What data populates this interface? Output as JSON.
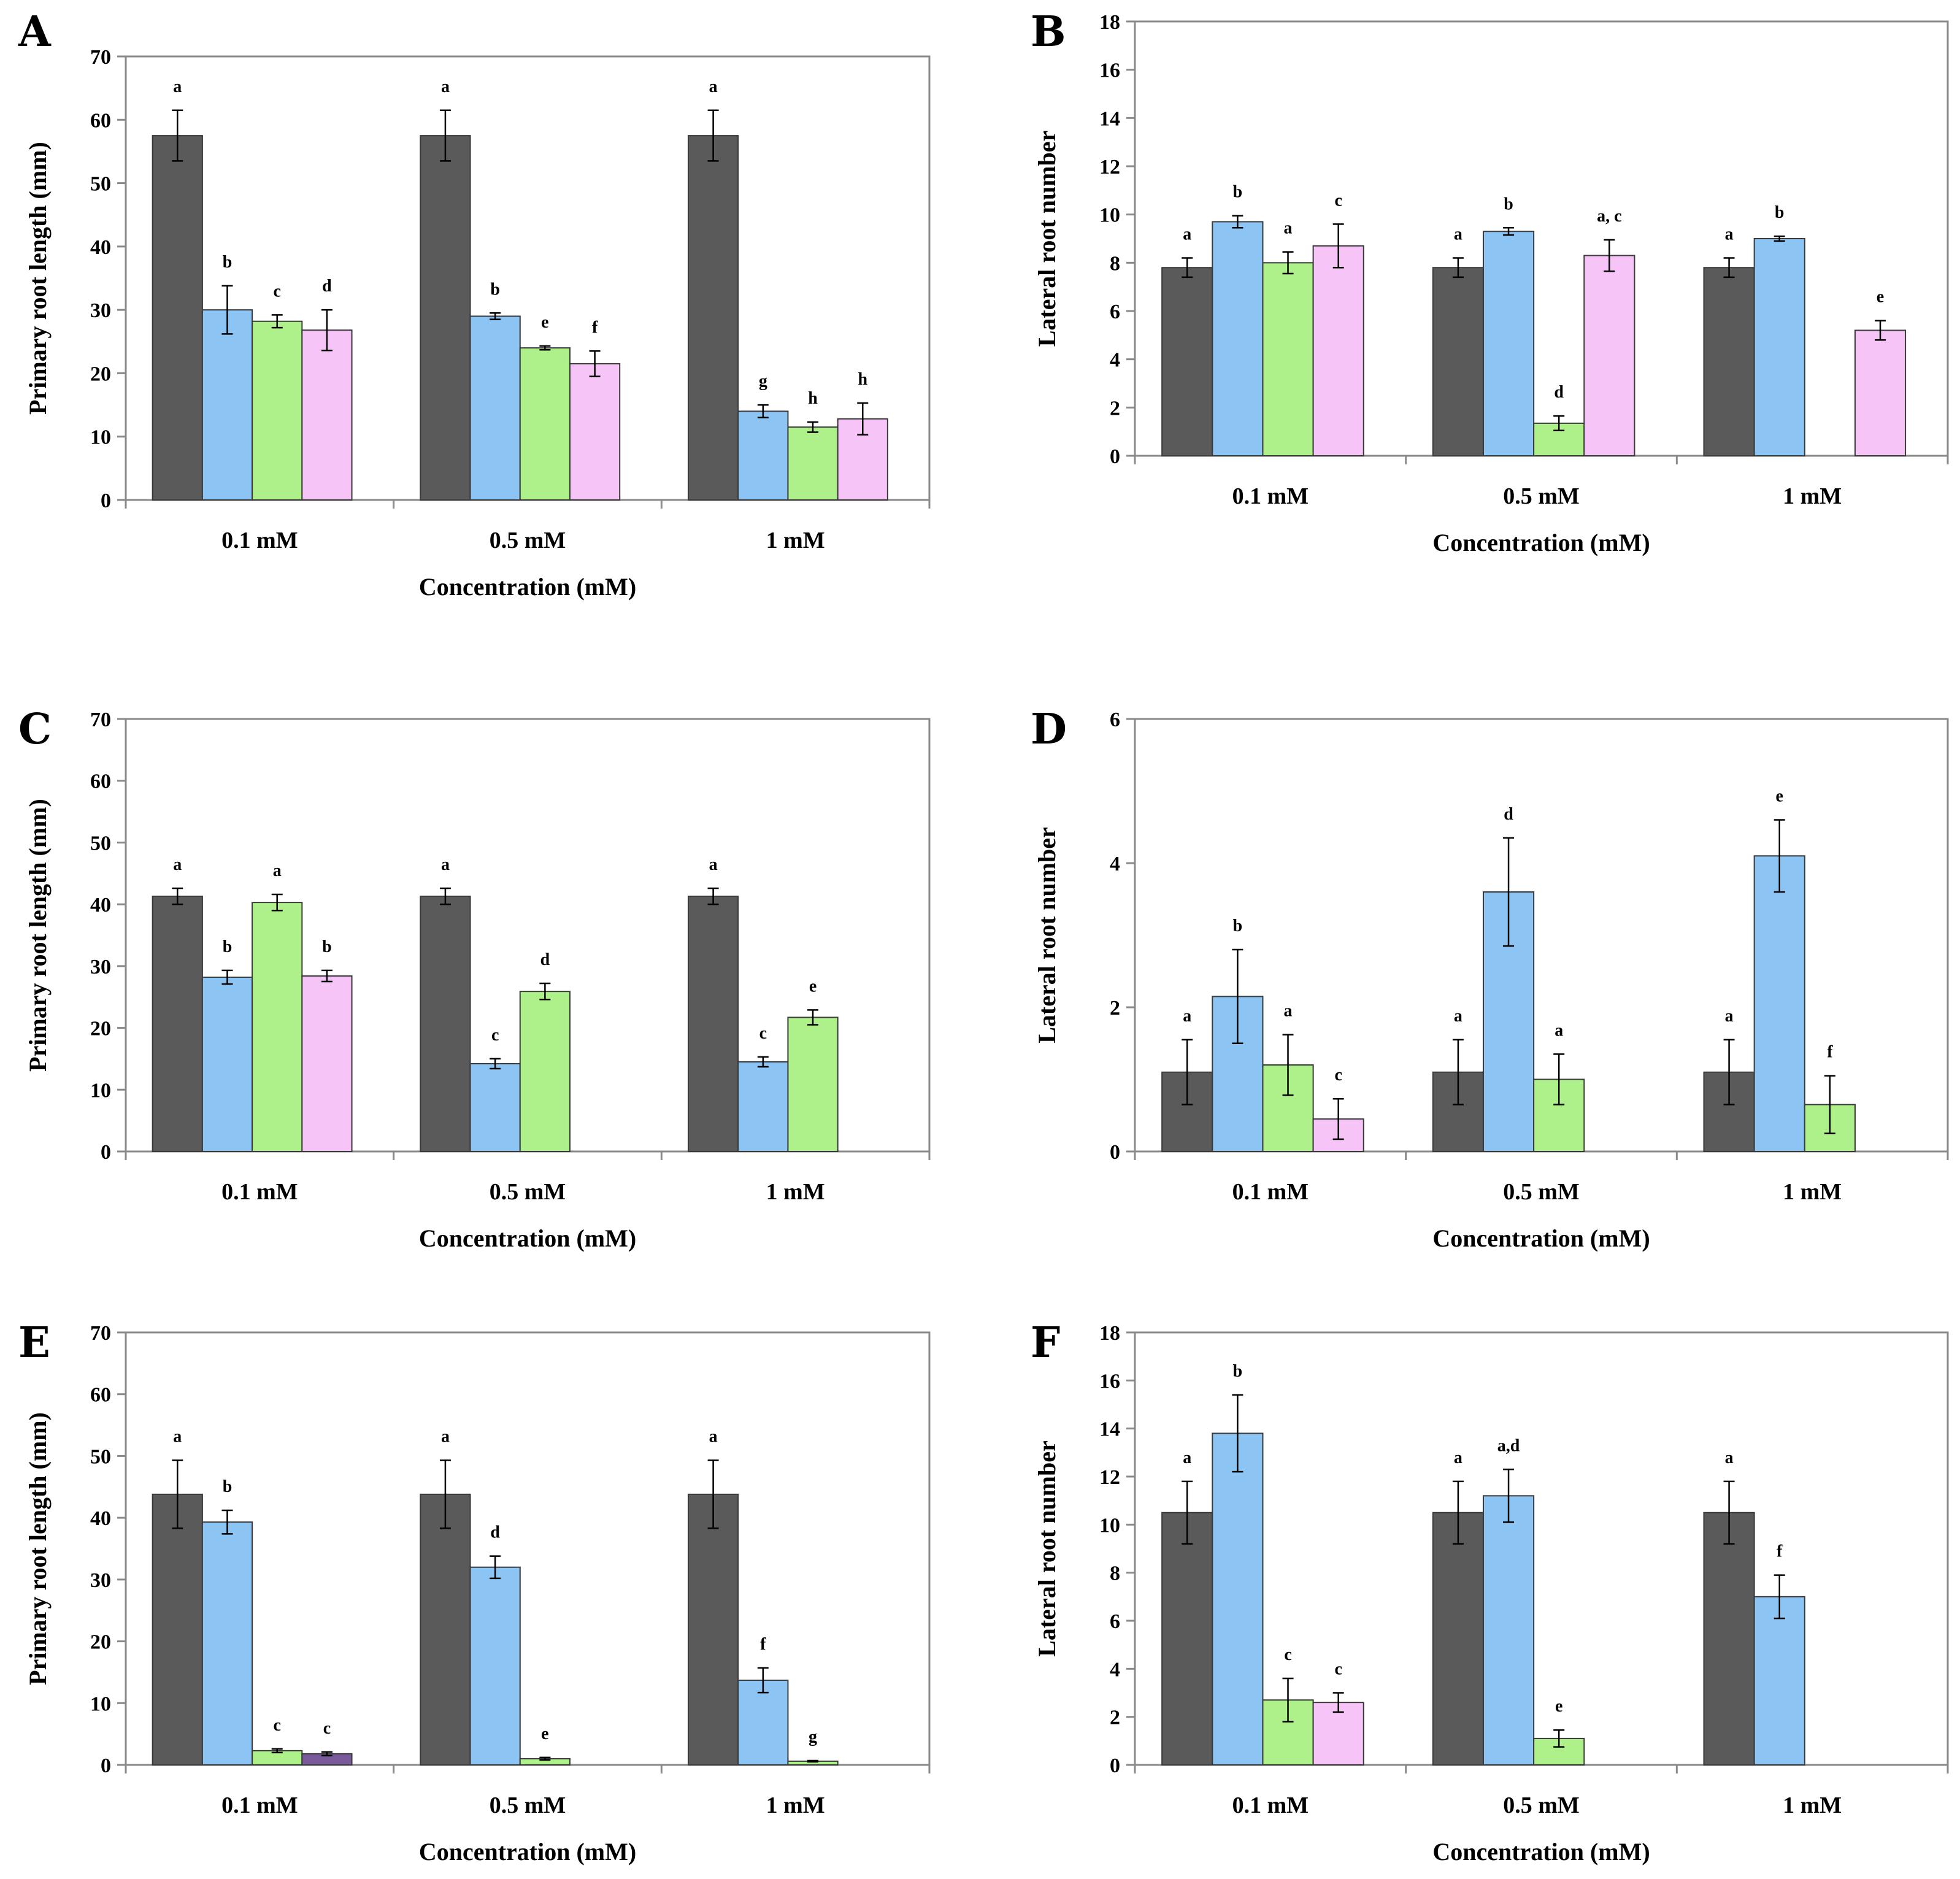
{
  "colors": {
    "control": "#5a5a5a",
    "blue": "#8cc4f4",
    "green": "#aef08a",
    "pink": "#f6c4f6",
    "purple": "#7a5a9a",
    "axis": "#8a8a8a",
    "errorbar": "#000000"
  },
  "chart_data": [
    {
      "type": "bar",
      "panel": "A",
      "categories": [
        "0.1 mM",
        "0.5 mM",
        "1 mM"
      ],
      "xlabel": "Concentration (mM)",
      "ylabel": "Primary root length (mm)",
      "ylim": [
        0,
        70
      ],
      "yticks": [
        0,
        10,
        20,
        30,
        40,
        50,
        60,
        70
      ],
      "grid": false,
      "groups": [
        {
          "bars": [
            {
              "value": 57.5,
              "err": 4.0,
              "label": "a",
              "color": "control"
            },
            {
              "value": 30.0,
              "err": 3.8,
              "label": "b",
              "color": "blue"
            },
            {
              "value": 28.2,
              "err": 1.0,
              "label": "c",
              "color": "green"
            },
            {
              "value": 26.8,
              "err": 3.2,
              "label": "d",
              "color": "pink"
            }
          ]
        },
        {
          "bars": [
            {
              "value": 57.5,
              "err": 4.0,
              "label": "a",
              "color": "control"
            },
            {
              "value": 29.0,
              "err": 0.5,
              "label": "b",
              "color": "blue"
            },
            {
              "value": 24.0,
              "err": 0.3,
              "label": "e",
              "color": "green"
            },
            {
              "value": 21.5,
              "err": 2.0,
              "label": "f",
              "color": "pink"
            }
          ]
        },
        {
          "bars": [
            {
              "value": 57.5,
              "err": 4.0,
              "label": "a",
              "color": "control"
            },
            {
              "value": 14.0,
              "err": 1.0,
              "label": "g",
              "color": "blue"
            },
            {
              "value": 11.5,
              "err": 0.8,
              "label": "h",
              "color": "green"
            },
            {
              "value": 12.8,
              "err": 2.5,
              "label": "h",
              "color": "pink"
            }
          ]
        }
      ]
    },
    {
      "type": "bar",
      "panel": "B",
      "categories": [
        "0.1 mM",
        "0.5 mM",
        "1 mM"
      ],
      "xlabel": "Concentration (mM)",
      "ylabel": "Lateral  root number",
      "ylim": [
        0,
        18
      ],
      "yticks": [
        0,
        2,
        4,
        6,
        8,
        10,
        12,
        14,
        16,
        18
      ],
      "grid": false,
      "groups": [
        {
          "bars": [
            {
              "value": 7.8,
              "err": 0.4,
              "label": "a",
              "color": "control"
            },
            {
              "value": 9.7,
              "err": 0.25,
              "label": "b",
              "color": "blue"
            },
            {
              "value": 8.0,
              "err": 0.45,
              "label": "a",
              "color": "green"
            },
            {
              "value": 8.7,
              "err": 0.9,
              "label": "c",
              "color": "pink"
            }
          ]
        },
        {
          "bars": [
            {
              "value": 7.8,
              "err": 0.4,
              "label": "a",
              "color": "control"
            },
            {
              "value": 9.3,
              "err": 0.15,
              "label": "b",
              "color": "blue"
            },
            {
              "value": 1.35,
              "err": 0.3,
              "label": "d",
              "color": "green"
            },
            {
              "value": 8.3,
              "err": 0.65,
              "label": "a, c",
              "color": "pink"
            }
          ]
        },
        {
          "bars": [
            {
              "value": 7.8,
              "err": 0.4,
              "label": "a",
              "color": "control"
            },
            {
              "value": 9.0,
              "err": 0.1,
              "label": "b",
              "color": "blue"
            },
            null,
            {
              "value": 5.2,
              "err": 0.4,
              "label": "e",
              "color": "pink"
            }
          ]
        }
      ]
    },
    {
      "type": "bar",
      "panel": "C",
      "categories": [
        "0.1 mM",
        "0.5 mM",
        "1 mM"
      ],
      "xlabel": "Concentration (mM)",
      "ylabel": "Primary root length (mm)",
      "ylim": [
        0,
        70
      ],
      "yticks": [
        0,
        10,
        20,
        30,
        40,
        50,
        60,
        70
      ],
      "grid": false,
      "groups": [
        {
          "bars": [
            {
              "value": 41.3,
              "err": 1.3,
              "label": "a",
              "color": "control"
            },
            {
              "value": 28.2,
              "err": 1.1,
              "label": "b",
              "color": "blue"
            },
            {
              "value": 40.3,
              "err": 1.3,
              "label": "a",
              "color": "green"
            },
            {
              "value": 28.4,
              "err": 0.9,
              "label": "b",
              "color": "pink"
            }
          ]
        },
        {
          "bars": [
            {
              "value": 41.3,
              "err": 1.3,
              "label": "a",
              "color": "control"
            },
            {
              "value": 14.2,
              "err": 0.8,
              "label": "c",
              "color": "blue"
            },
            {
              "value": 25.9,
              "err": 1.3,
              "label": "d",
              "color": "green"
            },
            null
          ]
        },
        {
          "bars": [
            {
              "value": 41.3,
              "err": 1.3,
              "label": "a",
              "color": "control"
            },
            {
              "value": 14.5,
              "err": 0.8,
              "label": "c",
              "color": "blue"
            },
            {
              "value": 21.7,
              "err": 1.2,
              "label": "e",
              "color": "green"
            },
            null
          ]
        }
      ]
    },
    {
      "type": "bar",
      "panel": "D",
      "categories": [
        "0.1 mM",
        "0.5 mM",
        "1 mM"
      ],
      "xlabel": "Concentration (mM)",
      "ylabel": "Lateral  root number",
      "ylim": [
        0,
        6
      ],
      "yticks": [
        0,
        2,
        4,
        6
      ],
      "grid": false,
      "groups": [
        {
          "bars": [
            {
              "value": 1.1,
              "err": 0.45,
              "label": "a",
              "color": "control"
            },
            {
              "value": 2.15,
              "err": 0.65,
              "label": "b",
              "color": "blue"
            },
            {
              "value": 1.2,
              "err": 0.42,
              "label": "a",
              "color": "green"
            },
            {
              "value": 0.45,
              "err": 0.28,
              "label": "c",
              "color": "pink"
            }
          ]
        },
        {
          "bars": [
            {
              "value": 1.1,
              "err": 0.45,
              "label": "a",
              "color": "control"
            },
            {
              "value": 3.6,
              "err": 0.75,
              "label": "d",
              "color": "blue"
            },
            {
              "value": 1.0,
              "err": 0.35,
              "label": "a",
              "color": "green"
            },
            null
          ]
        },
        {
          "bars": [
            {
              "value": 1.1,
              "err": 0.45,
              "label": "a",
              "color": "control"
            },
            {
              "value": 4.1,
              "err": 0.5,
              "label": "e",
              "color": "blue"
            },
            {
              "value": 0.65,
              "err": 0.4,
              "label": "f",
              "color": "green"
            },
            null
          ]
        }
      ]
    },
    {
      "type": "bar",
      "panel": "E",
      "categories": [
        "0.1 mM",
        "0.5 mM",
        "1 mM"
      ],
      "xlabel": "Concentration (mM)",
      "ylabel": "Primary root length (mm)",
      "ylim": [
        0,
        70
      ],
      "yticks": [
        0,
        10,
        20,
        30,
        40,
        50,
        60,
        70
      ],
      "grid": false,
      "groups": [
        {
          "bars": [
            {
              "value": 43.8,
              "err": 5.5,
              "label": "a",
              "color": "control"
            },
            {
              "value": 39.3,
              "err": 1.9,
              "label": "b",
              "color": "blue"
            },
            {
              "value": 2.3,
              "err": 0.3,
              "label": "c",
              "color": "green"
            },
            {
              "value": 1.8,
              "err": 0.3,
              "label": "c",
              "color": "purple"
            }
          ]
        },
        {
          "bars": [
            {
              "value": 43.8,
              "err": 5.5,
              "label": "a",
              "color": "control"
            },
            {
              "value": 32.0,
              "err": 1.8,
              "label": "d",
              "color": "blue"
            },
            {
              "value": 1.0,
              "err": 0.2,
              "label": "e",
              "color": "green"
            },
            null
          ]
        },
        {
          "bars": [
            {
              "value": 43.8,
              "err": 5.5,
              "label": "a",
              "color": "control"
            },
            {
              "value": 13.7,
              "err": 2.0,
              "label": "f",
              "color": "blue"
            },
            {
              "value": 0.6,
              "err": 0.1,
              "label": "g",
              "color": "green"
            },
            null
          ]
        }
      ]
    },
    {
      "type": "bar",
      "panel": "F",
      "categories": [
        "0.1 mM",
        "0.5 mM",
        "1 mM"
      ],
      "xlabel": "Concentration (mM)",
      "ylabel": "Lateral  root number",
      "ylim": [
        0,
        18
      ],
      "yticks": [
        0,
        2,
        4,
        6,
        8,
        10,
        12,
        14,
        16,
        18
      ],
      "grid": false,
      "groups": [
        {
          "bars": [
            {
              "value": 10.5,
              "err": 1.3,
              "label": "a",
              "color": "control"
            },
            {
              "value": 13.8,
              "err": 1.6,
              "label": "b",
              "color": "blue"
            },
            {
              "value": 2.7,
              "err": 0.9,
              "label": "c",
              "color": "green"
            },
            {
              "value": 2.6,
              "err": 0.4,
              "label": "c",
              "color": "pink"
            }
          ]
        },
        {
          "bars": [
            {
              "value": 10.5,
              "err": 1.3,
              "label": "a",
              "color": "control"
            },
            {
              "value": 11.2,
              "err": 1.1,
              "label": "a,d",
              "color": "blue"
            },
            {
              "value": 1.1,
              "err": 0.35,
              "label": "e",
              "color": "green"
            },
            null
          ]
        },
        {
          "bars": [
            {
              "value": 10.5,
              "err": 1.3,
              "label": "a",
              "color": "control"
            },
            {
              "value": 7.0,
              "err": 0.9,
              "label": "f",
              "color": "blue"
            },
            null,
            null
          ]
        }
      ]
    }
  ]
}
